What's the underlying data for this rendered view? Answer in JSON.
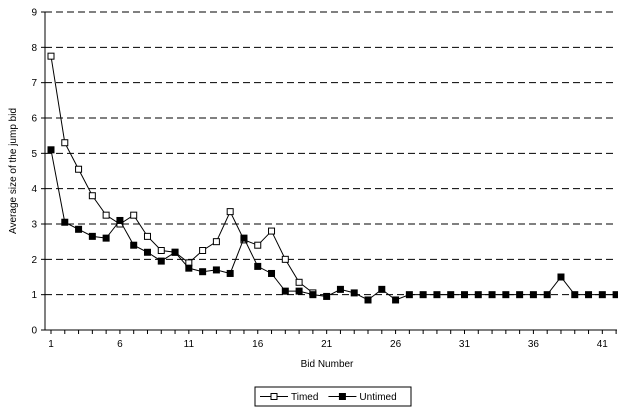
{
  "chart_data": {
    "type": "line",
    "title": "",
    "xlabel": "Bid Number",
    "ylabel": "Average size of the jump bid",
    "xlim": [
      1,
      42
    ],
    "ylim": [
      0,
      9
    ],
    "x_ticks": [
      1,
      6,
      11,
      16,
      21,
      26,
      31,
      36,
      41
    ],
    "y_ticks": [
      0,
      1,
      2,
      3,
      4,
      5,
      6,
      7,
      8,
      9
    ],
    "grid": "horizontal dashed",
    "legend_position": "bottom-center",
    "x": [
      1,
      2,
      3,
      4,
      5,
      6,
      7,
      8,
      9,
      10,
      11,
      12,
      13,
      14,
      15,
      16,
      17,
      18,
      19,
      20,
      21,
      22,
      23,
      24,
      25,
      26,
      27,
      28,
      29,
      30,
      31,
      32,
      33,
      34,
      35,
      36,
      37,
      38,
      39,
      40,
      41,
      42
    ],
    "series": [
      {
        "name": "Timed",
        "marker": "open-square",
        "x": [
          1,
          2,
          3,
          4,
          5,
          6,
          7,
          8,
          9,
          10,
          11,
          12,
          13,
          14,
          15,
          16,
          17,
          18,
          19,
          20
        ],
        "values": [
          7.75,
          5.3,
          4.55,
          3.8,
          3.25,
          3.0,
          3.25,
          2.65,
          2.25,
          2.2,
          1.9,
          2.25,
          2.5,
          3.35,
          2.55,
          2.4,
          2.8,
          2.0,
          1.35,
          1.05
        ]
      },
      {
        "name": "Untimed",
        "marker": "filled-square",
        "x": [
          1,
          2,
          3,
          4,
          5,
          6,
          7,
          8,
          9,
          10,
          11,
          12,
          13,
          14,
          15,
          16,
          17,
          18,
          19,
          20,
          21,
          22,
          23,
          24,
          25,
          26,
          27,
          28,
          29,
          30,
          31,
          32,
          33,
          34,
          35,
          36,
          37,
          38,
          39,
          40,
          41,
          42
        ],
        "values": [
          5.1,
          3.05,
          2.85,
          2.65,
          2.6,
          3.1,
          2.4,
          2.2,
          1.95,
          2.2,
          1.75,
          1.65,
          1.7,
          1.6,
          2.6,
          1.8,
          1.6,
          1.1,
          1.1,
          1.0,
          0.95,
          1.15,
          1.05,
          0.85,
          1.15,
          0.85,
          1.0,
          1.0,
          1.0,
          1.0,
          1.0,
          1.0,
          1.0,
          1.0,
          1.0,
          1.0,
          1.0,
          1.5,
          1.0,
          1.0,
          1.0,
          1.0
        ]
      }
    ],
    "colors": {
      "line": "#000000",
      "grid": "#000000",
      "background": "#ffffff"
    }
  }
}
